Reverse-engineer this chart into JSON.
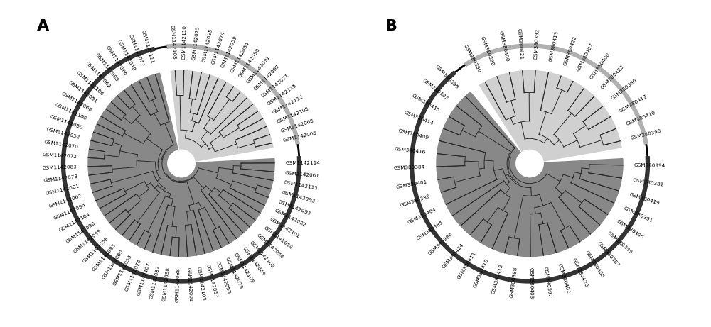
{
  "panel_A_light": [
    "GSM1142111",
    "GSM1142097",
    "GSM1142091",
    "GSM1142090",
    "GSM1142064",
    "GSM1142059",
    "GSM1142074",
    "GSM1142095",
    "GSM1142075",
    "GSM1142110",
    "GSM1142108"
  ],
  "panel_A_light_top": [
    "GSM1142065",
    "GSM1142068",
    "GSM1142105",
    "GSM1142112",
    "GSM1142115",
    "GSM1142071"
  ],
  "panel_A_dark": [
    "GSM1142077",
    "GSM1142048",
    "GSM1142086",
    "GSM1142089",
    "GSM1142062",
    "GSM1142106",
    "GSM1142051",
    "GSM1142066",
    "GSM1142100",
    "GSM1142050",
    "GSM1142052",
    "GSM1142070",
    "GSM1142072",
    "GSM1142083",
    "GSM1142078",
    "GSM1142081",
    "GSM1142067",
    "GSM1142094",
    "GSM1142104",
    "GSM1142080",
    "GSM1142099",
    "GSM1142058",
    "GSM1142085",
    "GSM1142060",
    "GSM1142055",
    "GSM1142076",
    "GSM1142107",
    "GSM1142087",
    "GSM1142098",
    "GSM1142088",
    "GSM1142001",
    "GSM1142103",
    "GSM1142057",
    "GSM1142053",
    "GSM1142079",
    "GSM1142109",
    "GSM1142069",
    "GSM1142102",
    "GSM1142056",
    "GSM1142054",
    "GSM1142101",
    "GSM1142082",
    "GSM1142092",
    "GSM1142093",
    "GSM1142113",
    "GSM1142061",
    "GSM1142114"
  ],
  "panel_B_light": [
    "GSM380393",
    "GSM380410",
    "GSM380417",
    "GSM380396",
    "GSM380423",
    "GSM380408",
    "GSM380407",
    "GSM380422",
    "GSM380413",
    "GSM380392",
    "GSM380421",
    "GSM380400",
    "GSM380398",
    "GSM380390"
  ],
  "panel_B_dark": [
    "GSM380395",
    "GSM380383",
    "GSM380415",
    "GSM380414",
    "GSM380409",
    "GSM380416",
    "GSM380384",
    "GSM380401",
    "GSM380389",
    "GSM380404",
    "GSM380385",
    "GSM380386",
    "GSM380424",
    "GSM380411",
    "GSM380418",
    "GSM380412",
    "GSM380388",
    "GSM380403",
    "GSM380397",
    "GSM380402",
    "GSM380420",
    "GSM380405",
    "GSM380387",
    "GSM380399",
    "GSM380406",
    "GSM380391",
    "GSM380419",
    "GSM380382",
    "GSM380394"
  ],
  "light_fill": "#d0d0d0",
  "dark_fill": "#888888",
  "line_color": "#2a2a2a",
  "bg_color": "#ffffff",
  "text_color": "#000000",
  "leaf_fontsize": 5.2,
  "label_fontsize": 16,
  "outer_ring_lw": 2.0,
  "branch_lw": 0.7
}
